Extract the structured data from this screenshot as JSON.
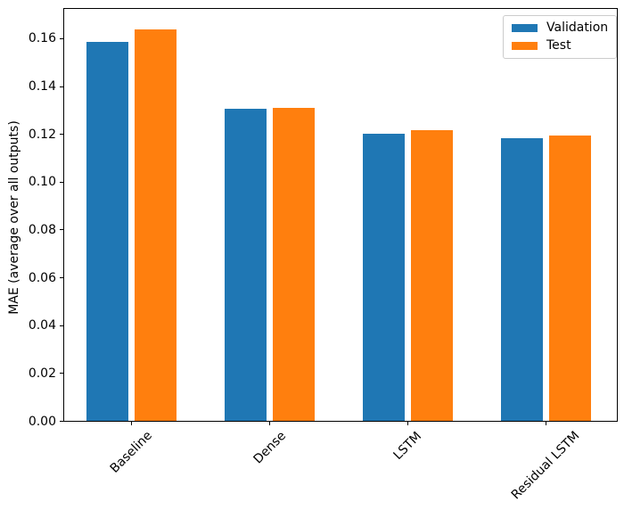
{
  "figure": {
    "background": "#ffffff",
    "text_color": "#000000",
    "spine_color": "#000000"
  },
  "chart_data": {
    "type": "bar",
    "title": "",
    "xlabel": "",
    "ylabel": "MAE (average over all outputs)",
    "categories": [
      "Baseline",
      "Dense",
      "LSTM",
      "Residual LSTM"
    ],
    "series": [
      {
        "name": "Validation",
        "color": "#1f77b4",
        "values": [
          0.159,
          0.131,
          0.1203,
          0.1186
        ]
      },
      {
        "name": "Test",
        "color": "#ff7f0e",
        "values": [
          0.164,
          0.1312,
          0.1218,
          0.1196
        ]
      }
    ],
    "ylim": [
      0,
      0.173
    ],
    "ytick_labels": [
      "0.00",
      "0.02",
      "0.04",
      "0.06",
      "0.08",
      "0.10",
      "0.12",
      "0.14",
      "0.16"
    ],
    "ytick_values": [
      0.0,
      0.02,
      0.04,
      0.06,
      0.08,
      0.1,
      0.12,
      0.14,
      0.16
    ],
    "xtick_rotation": 45,
    "grid": false,
    "legend_position": "upper right"
  }
}
